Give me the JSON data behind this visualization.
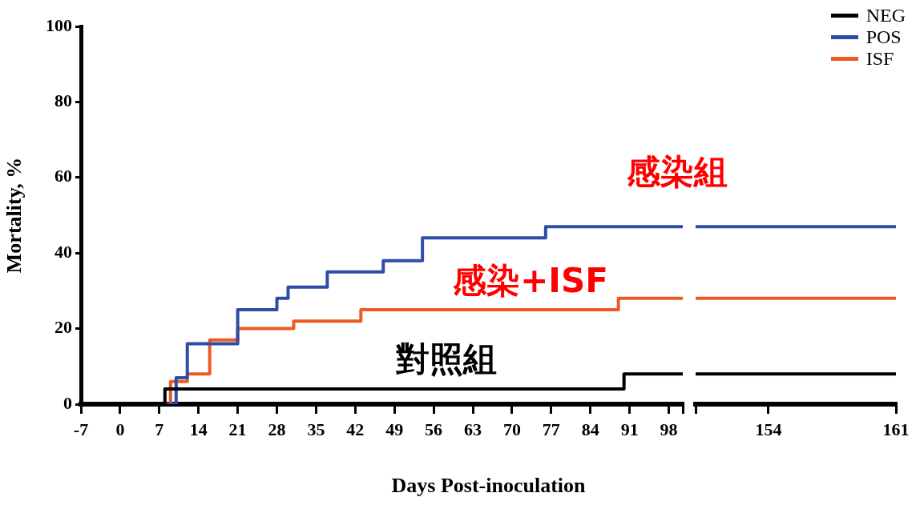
{
  "chart_data": [
    {
      "type": "step",
      "xlabel": "Days Post-inoculation",
      "ylabel": "Mortality, %",
      "xlim": [
        -7,
        100.5
      ],
      "xticks": [
        -7,
        0,
        7,
        14,
        21,
        28,
        35,
        42,
        49,
        56,
        63,
        70,
        77,
        84,
        91,
        98,
        {
          "value": 100.5,
          "label": null
        }
      ],
      "ylim": [
        0,
        100
      ],
      "yticks": [
        0,
        20,
        40,
        60,
        80,
        100
      ],
      "series": [
        {
          "color": "#000000",
          "x": [
            -7,
            8,
            90,
            100.5
          ],
          "values": [
            0,
            4,
            8,
            8
          ]
        },
        {
          "color": "#2e4da6",
          "x": [
            -7,
            10,
            12,
            21,
            28,
            30,
            37,
            47,
            54,
            76,
            100.5
          ],
          "values": [
            0,
            7,
            16,
            25,
            28,
            31,
            35,
            38,
            44,
            47,
            47
          ]
        },
        {
          "color": "#ee5a24",
          "x": [
            -7,
            9,
            12,
            16,
            21,
            31,
            43,
            89,
            100.5
          ],
          "values": [
            0,
            6,
            8,
            17,
            20,
            22,
            25,
            28,
            28
          ]
        }
      ],
      "annotations": [
        "感染組",
        "感染+ISF",
        "對照組"
      ]
    },
    {
      "type": "step",
      "xlim": [
        150,
        161
      ],
      "xticks": [
        {
          "value": 150,
          "label": null
        },
        154,
        161
      ],
      "ylim": [
        0,
        100
      ],
      "tick_labels": "x",
      "legend": "top right",
      "series": [
        {
          "name": "NEG",
          "color": "#000000",
          "x": [
            150,
            161
          ],
          "values": [
            8,
            8
          ]
        },
        {
          "name": "POS",
          "color": "#2e4da6",
          "x": [
            150,
            161
          ],
          "values": [
            47,
            47
          ]
        },
        {
          "name": "ISF",
          "color": "#ee5a24",
          "x": [
            150,
            161
          ],
          "values": [
            28,
            28
          ]
        }
      ]
    }
  ]
}
